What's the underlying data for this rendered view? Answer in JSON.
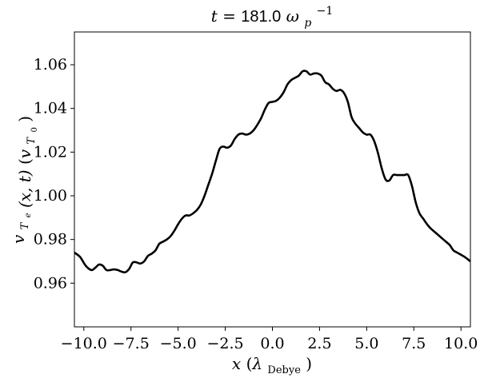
{
  "chart_data": {
    "type": "line",
    "title": "t =181.0 ω_p^-1",
    "title_parts": {
      "lhs": "t =",
      "value": "181.0",
      "unit": "ω",
      "sub": "p",
      "sup": "−1"
    },
    "xlabel": "x (λ_Debye)",
    "xlabel_parts": {
      "var": "x",
      "unit": "λ",
      "sub": "Debye"
    },
    "ylabel": "v_Te (x, t) (v_T0)",
    "ylabel_parts": {
      "var": "v",
      "sub": "T",
      "subsub": "e",
      "args": "(x, t)",
      "unit": "v",
      "unit_sub": "T",
      "unit_subsub": "0"
    },
    "xlim": [
      -10.5,
      10.5
    ],
    "ylim": [
      0.94,
      1.075
    ],
    "x_ticks": [
      -10.0,
      -7.5,
      -5.0,
      -2.5,
      0.0,
      2.5,
      5.0,
      7.5,
      10.0
    ],
    "x_tick_labels": [
      "−10.0",
      "−7.5",
      "−5.0",
      "−2.5",
      "0.0",
      "2.5",
      "5.0",
      "7.5",
      "10.0"
    ],
    "y_ticks": [
      0.96,
      0.98,
      1.0,
      1.02,
      1.04,
      1.06
    ],
    "y_tick_labels": [
      "0.96",
      "0.98",
      "1.00",
      "1.02",
      "1.04",
      "1.06"
    ],
    "grid": false,
    "line_color": "#000000",
    "series": [
      {
        "x": [
          -10.5,
          -10.2,
          -9.9,
          -9.6,
          -9.4,
          -9.2,
          -9.0,
          -8.8,
          -8.6,
          -8.4,
          -8.2,
          -8.0,
          -7.8,
          -7.6,
          -7.4,
          -7.2,
          -7.0,
          -6.8,
          -6.6,
          -6.4,
          -6.2,
          -6.0,
          -5.8,
          -5.6,
          -5.4,
          -5.2,
          -5.0,
          -4.8,
          -4.6,
          -4.4,
          -4.2,
          -4.0,
          -3.8,
          -3.6,
          -3.4,
          -3.2,
          -3.0,
          -2.8,
          -2.6,
          -2.4,
          -2.2,
          -2.0,
          -1.8,
          -1.6,
          -1.4,
          -1.2,
          -1.0,
          -0.8,
          -0.6,
          -0.4,
          -0.2,
          0.0,
          0.2,
          0.4,
          0.6,
          0.8,
          1.0,
          1.2,
          1.4,
          1.6,
          1.8,
          2.0,
          2.2,
          2.4,
          2.6,
          2.8,
          3.0,
          3.2,
          3.4,
          3.6,
          3.8,
          4.0,
          4.2,
          4.4,
          4.6,
          4.8,
          5.0,
          5.2,
          5.4,
          5.6,
          5.8,
          6.0,
          6.2,
          6.4,
          6.6,
          6.8,
          7.0,
          7.2,
          7.4,
          7.6,
          7.8,
          8.0,
          8.2,
          8.4,
          8.6,
          8.8,
          9.0,
          9.2,
          9.4,
          9.6,
          9.8,
          10.0,
          10.2,
          10.5
        ],
        "y": [
          0.974,
          0.972,
          0.968,
          0.966,
          0.967,
          0.9685,
          0.968,
          0.966,
          0.966,
          0.9663,
          0.966,
          0.9653,
          0.965,
          0.9665,
          0.9695,
          0.9695,
          0.969,
          0.97,
          0.9725,
          0.9735,
          0.975,
          0.978,
          0.979,
          0.98,
          0.9815,
          0.984,
          0.987,
          0.9895,
          0.991,
          0.991,
          0.992,
          0.9935,
          0.996,
          1.0,
          1.005,
          1.01,
          1.016,
          1.0215,
          1.0225,
          1.022,
          1.023,
          1.026,
          1.028,
          1.0285,
          1.028,
          1.0285,
          1.03,
          1.0325,
          1.0355,
          1.0395,
          1.0425,
          1.043,
          1.0435,
          1.045,
          1.0475,
          1.051,
          1.053,
          1.054,
          1.055,
          1.057,
          1.057,
          1.0555,
          1.056,
          1.056,
          1.055,
          1.052,
          1.051,
          1.049,
          1.048,
          1.0485,
          1.047,
          1.043,
          1.036,
          1.033,
          1.031,
          1.029,
          1.028,
          1.028,
          1.025,
          1.0195,
          1.0125,
          1.0075,
          1.007,
          1.0095,
          1.0095,
          1.0095,
          1.0095,
          1.0095,
          1.0045,
          0.997,
          0.992,
          0.9895,
          0.987,
          0.985,
          0.9835,
          0.982,
          0.9805,
          0.979,
          0.9775,
          0.975,
          0.974,
          0.973,
          0.972,
          0.97
        ]
      }
    ]
  }
}
